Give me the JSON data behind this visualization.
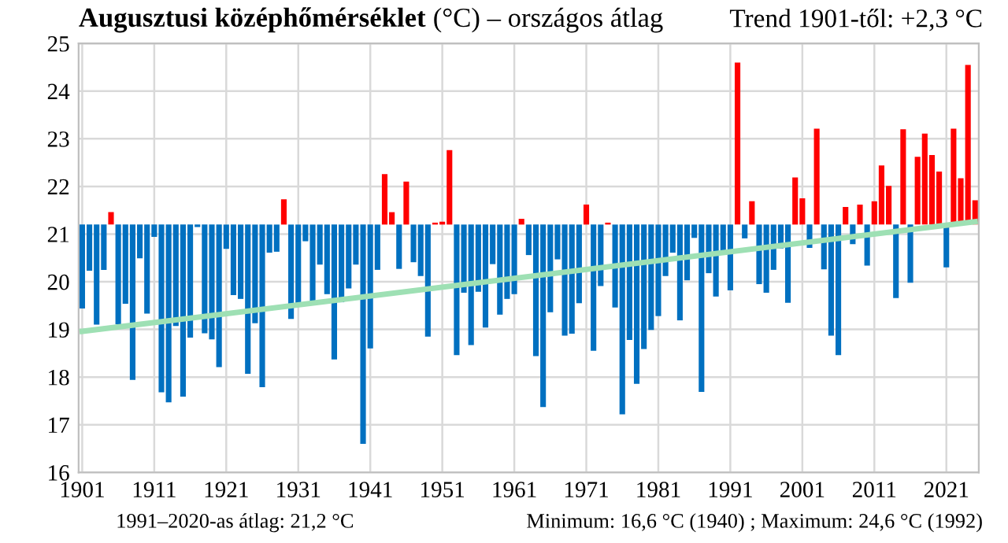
{
  "chart_data": {
    "type": "bar",
    "title": "Augusztusi középhőmérséklet",
    "subtitle": "(°C) – országos átlag",
    "annotations": [
      "Trend 1901-től: +2,3 °C",
      "1991–2020-as átlag: 21,2 °C",
      "Minimum: 16,6 °C (1940) ; Maximum: 24,6 °C (1992)"
    ],
    "x": [
      1901,
      1902,
      1903,
      1904,
      1905,
      1906,
      1907,
      1908,
      1909,
      1910,
      1911,
      1912,
      1913,
      1914,
      1915,
      1916,
      1917,
      1918,
      1919,
      1920,
      1921,
      1922,
      1923,
      1924,
      1925,
      1926,
      1927,
      1928,
      1929,
      1930,
      1931,
      1932,
      1933,
      1934,
      1935,
      1936,
      1937,
      1938,
      1939,
      1940,
      1941,
      1942,
      1943,
      1944,
      1945,
      1946,
      1947,
      1948,
      1949,
      1950,
      1951,
      1952,
      1953,
      1954,
      1955,
      1956,
      1957,
      1958,
      1959,
      1960,
      1961,
      1962,
      1963,
      1964,
      1965,
      1966,
      1967,
      1968,
      1969,
      1970,
      1971,
      1972,
      1973,
      1974,
      1975,
      1976,
      1977,
      1978,
      1979,
      1980,
      1981,
      1982,
      1983,
      1984,
      1985,
      1986,
      1987,
      1988,
      1989,
      1990,
      1991,
      1992,
      1993,
      1994,
      1995,
      1996,
      1997,
      1998,
      1999,
      2000,
      2001,
      2002,
      2003,
      2004,
      2005,
      2006,
      2007,
      2008,
      2009,
      2010,
      2011,
      2012,
      2013,
      2014,
      2015,
      2016,
      2017,
      2018,
      2019,
      2020,
      2021,
      2022,
      2023,
      2024,
      2025
    ],
    "series": [
      {
        "base": [
          21.2,
          21.2,
          21.2,
          21.2,
          21.2,
          21.2,
          21.2,
          21.2,
          21.2,
          21.2,
          21.2,
          21.2,
          21.2,
          21.2,
          21.2,
          21.2,
          21.2,
          21.2,
          21.2,
          21.2,
          21.2,
          21.2,
          21.2,
          21.2,
          21.2,
          21.2,
          21.2,
          21.2,
          21.2,
          21.2,
          21.2,
          21.2,
          21.2,
          21.2,
          21.2,
          21.2,
          21.2,
          21.2,
          21.2,
          21.2,
          21.2,
          21.2,
          21.2,
          21.2,
          21.2,
          21.2,
          21.2,
          21.2,
          21.2,
          21.2,
          21.2,
          21.2,
          21.2,
          21.2,
          21.2,
          21.2,
          21.2,
          21.2,
          21.2,
          21.2,
          21.2,
          21.2,
          21.2,
          21.2,
          21.2,
          21.2,
          21.2,
          21.2,
          21.2,
          21.2,
          21.2,
          21.2,
          21.2,
          21.2,
          21.2,
          21.2,
          21.2,
          21.2,
          21.2,
          21.2,
          21.2,
          21.2,
          21.2,
          21.2,
          21.2,
          21.2,
          21.2,
          21.2,
          21.2,
          21.2,
          21.2,
          21.2,
          21.2,
          21.2,
          21.2,
          21.2,
          21.2,
          21.2,
          21.2,
          21.2,
          21.2,
          21.2,
          21.2,
          21.2,
          21.2,
          21.2,
          21.2,
          21.2,
          21.2,
          21.2,
          21.2,
          21.2,
          21.2,
          21.2,
          21.2,
          21.2,
          21.2,
          21.2,
          21.2,
          21.2,
          21.2,
          21.2,
          21.2,
          21.2,
          21.2
        ],
        "values": [
          -1.76,
          -0.97,
          -2.1,
          -0.95,
          0.26,
          -2.09,
          -1.66,
          -3.26,
          -0.71,
          -1.87,
          -0.26,
          -3.52,
          -3.73,
          -2.13,
          -3.61,
          -2.37,
          -0.05,
          -2.28,
          -2.41,
          -2.99,
          -0.51,
          -1.48,
          -1.56,
          -3.13,
          -2.07,
          -3.41,
          -0.59,
          -0.57,
          0.53,
          -1.98,
          -1.66,
          -0.35,
          -1.65,
          -0.84,
          -1.46,
          -2.83,
          -1.63,
          -1.34,
          -0.84,
          -4.6,
          -2.6,
          -0.95,
          1.06,
          0.26,
          -0.93,
          0.9,
          -0.79,
          -1.08,
          -2.35,
          0.04,
          0.06,
          1.56,
          -2.74,
          -1.43,
          -2.53,
          -1.41,
          -2.16,
          -0.83,
          -1.89,
          -1.56,
          -1.46,
          0.12,
          -0.64,
          -2.76,
          -3.83,
          -1.84,
          -0.73,
          -2.33,
          -2.29,
          -1.65,
          0.42,
          -2.65,
          -1.29,
          0.04,
          -1.74,
          -3.98,
          -2.42,
          -3.34,
          -2.61,
          -2.21,
          -1.92,
          -1.08,
          -0.59,
          -2.01,
          -1.17,
          -0.28,
          -3.51,
          -1.02,
          -1.51,
          -0.54,
          -1.38,
          3.4,
          -0.29,
          0.49,
          -1.25,
          -1.43,
          -0.95,
          -0.5,
          -1.64,
          0.99,
          0.55,
          -0.49,
          2.01,
          -0.94,
          -2.33,
          -2.74,
          0.37,
          -0.41,
          0.42,
          -0.86,
          0.49,
          1.24,
          0.81,
          -1.54,
          2.0,
          -1.22,
          1.42,
          1.91,
          1.46,
          1.11,
          -0.9,
          2.01,
          0.97,
          3.35,
          0.51
        ],
        "colors": [
          "#0070c0",
          "#0070c0",
          "#0070c0",
          "#0070c0",
          "#ff0000",
          "#0070c0",
          "#0070c0",
          "#0070c0",
          "#0070c0",
          "#0070c0",
          "#0070c0",
          "#0070c0",
          "#0070c0",
          "#0070c0",
          "#0070c0",
          "#0070c0",
          "#0070c0",
          "#0070c0",
          "#0070c0",
          "#0070c0",
          "#0070c0",
          "#0070c0",
          "#0070c0",
          "#0070c0",
          "#0070c0",
          "#0070c0",
          "#0070c0",
          "#0070c0",
          "#ff0000",
          "#0070c0",
          "#0070c0",
          "#0070c0",
          "#0070c0",
          "#0070c0",
          "#0070c0",
          "#0070c0",
          "#0070c0",
          "#0070c0",
          "#0070c0",
          "#0070c0",
          "#0070c0",
          "#0070c0",
          "#ff0000",
          "#ff0000",
          "#0070c0",
          "#ff0000",
          "#0070c0",
          "#0070c0",
          "#0070c0",
          "#ff0000",
          "#ff0000",
          "#ff0000",
          "#0070c0",
          "#0070c0",
          "#0070c0",
          "#0070c0",
          "#0070c0",
          "#0070c0",
          "#0070c0",
          "#0070c0",
          "#0070c0",
          "#ff0000",
          "#0070c0",
          "#0070c0",
          "#0070c0",
          "#0070c0",
          "#0070c0",
          "#0070c0",
          "#0070c0",
          "#0070c0",
          "#ff0000",
          "#0070c0",
          "#0070c0",
          "#ff0000",
          "#0070c0",
          "#0070c0",
          "#0070c0",
          "#0070c0",
          "#0070c0",
          "#0070c0",
          "#0070c0",
          "#0070c0",
          "#0070c0",
          "#0070c0",
          "#0070c0",
          "#0070c0",
          "#0070c0",
          "#0070c0",
          "#0070c0",
          "#0070c0",
          "#0070c0",
          "#ff0000",
          "#0070c0",
          "#ff0000",
          "#0070c0",
          "#0070c0",
          "#0070c0",
          "#0070c0",
          "#0070c0",
          "#ff0000",
          "#ff0000",
          "#0070c0",
          "#ff0000",
          "#0070c0",
          "#0070c0",
          "#0070c0",
          "#ff0000",
          "#0070c0",
          "#ff0000",
          "#0070c0",
          "#ff0000",
          "#ff0000",
          "#ff0000",
          "#0070c0",
          "#ff0000",
          "#0070c0",
          "#ff0000",
          "#ff0000",
          "#ff0000",
          "#ff0000",
          "#0070c0",
          "#ff0000",
          "#ff0000",
          "#ff0000",
          "#ff0000"
        ]
      },
      {
        "type": "line",
        "x": [
          1901,
          2025
        ],
        "values": [
          18.96,
          21.26
        ],
        "color": "#9ee0b4"
      }
    ],
    "xlim": [
      1900.5,
      2025.5
    ],
    "xticks": [
      1901,
      1911,
      1921,
      1931,
      1941,
      1951,
      1961,
      1971,
      1981,
      1991,
      2001,
      2011,
      2021
    ],
    "ylim": [
      16,
      25
    ],
    "yticks": [
      16,
      17,
      18,
      19,
      20,
      21,
      22,
      23,
      24,
      25
    ],
    "grid": true,
    "legend": false
  }
}
